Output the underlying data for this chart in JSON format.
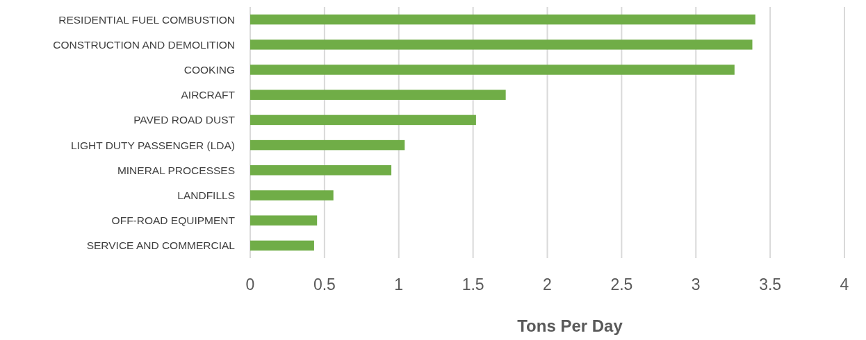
{
  "chart_data": {
    "type": "bar",
    "orientation": "horizontal",
    "xlabel": "Tons Per Day",
    "categories": [
      "RESIDENTIAL FUEL COMBUSTION",
      "CONSTRUCTION AND DEMOLITION",
      "COOKING",
      "AIRCRAFT",
      "PAVED ROAD DUST",
      "LIGHT DUTY PASSENGER (LDA)",
      "MINERAL PROCESSES",
      "LANDFILLS",
      "OFF-ROAD EQUIPMENT",
      "SERVICE AND COMMERCIAL"
    ],
    "values": [
      3.4,
      3.38,
      3.26,
      1.72,
      1.52,
      1.04,
      0.95,
      0.56,
      0.45,
      0.43
    ],
    "color": "#70ad47",
    "xlim": [
      0,
      4
    ],
    "xticks": [
      0,
      0.5,
      1,
      1.5,
      2,
      2.5,
      3,
      3.5,
      4
    ],
    "grid": "x"
  }
}
